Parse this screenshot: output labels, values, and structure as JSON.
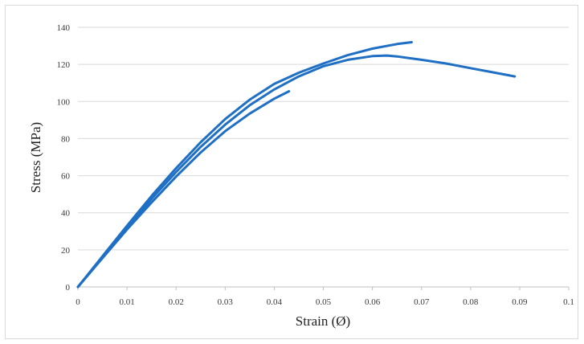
{
  "chart_data": {
    "type": "line",
    "title": "",
    "xlabel": "Strain (Ø)",
    "ylabel": "Stress (MPa)",
    "xlim": [
      0,
      0.1
    ],
    "ylim": [
      0,
      140
    ],
    "xticks": [
      "0",
      "0.01",
      "0.02",
      "0.03",
      "0.04",
      "0.05",
      "0.06",
      "0.07",
      "0.08",
      "0.09",
      "0.1"
    ],
    "yticks": [
      "0",
      "20",
      "40",
      "60",
      "80",
      "100",
      "120",
      "140"
    ],
    "grid": "horizontal",
    "legend": "none",
    "color": "#1f6fc5",
    "series": [
      {
        "x": [
          0,
          0.005,
          0.01,
          0.015,
          0.02,
          0.025,
          0.03,
          0.035,
          0.04,
          0.043
        ],
        "y": [
          0,
          15.5,
          31,
          45.5,
          59.5,
          72.5,
          84,
          93.5,
          101.5,
          105.5
        ]
      },
      {
        "x": [
          0,
          0.005,
          0.01,
          0.015,
          0.02,
          0.025,
          0.03,
          0.035,
          0.04,
          0.045,
          0.05,
          0.055,
          0.06,
          0.063,
          0.065,
          0.07,
          0.075,
          0.08,
          0.085,
          0.089
        ],
        "y": [
          0,
          16,
          32,
          47.5,
          62,
          75.5,
          87.5,
          98,
          106.5,
          113.5,
          119,
          122.5,
          124.5,
          124.8,
          124.3,
          122.5,
          120.5,
          118,
          115.5,
          113.5
        ]
      },
      {
        "x": [
          0,
          0.005,
          0.01,
          0.015,
          0.02,
          0.025,
          0.03,
          0.035,
          0.04,
          0.045,
          0.05,
          0.055,
          0.06,
          0.065,
          0.068
        ],
        "y": [
          0,
          16.5,
          33,
          49,
          64,
          78,
          90.5,
          101,
          109.5,
          115.5,
          120.5,
          125,
          128.5,
          131,
          132
        ]
      }
    ]
  }
}
